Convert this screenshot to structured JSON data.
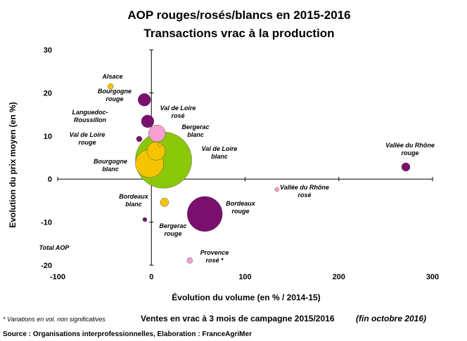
{
  "chart_data": {
    "type": "bubble",
    "title": [
      "AOP rouges/rosés/blancs en 2015-2016",
      "Transactions vrac à la production"
    ],
    "x_label": "Évolution du volume (en % / 2014-15)",
    "y_label": "Evolution du prix moyen (en %)",
    "xlim": [
      -100,
      300
    ],
    "xticks": [
      -100,
      0,
      100,
      200,
      300
    ],
    "ylim": [
      -20,
      30
    ],
    "yticks": [
      -20,
      -10,
      0,
      10,
      20,
      30
    ],
    "series": [
      {
        "name": [
          "Total AOP"
        ],
        "color": "#8cc80a",
        "x": [
          13
        ],
        "values": [
          4.4
        ],
        "sizes": [
          40
        ]
      },
      {
        "name": [
          "Alsace"
        ],
        "color": "#f5c400",
        "x": [
          -43.5
        ],
        "values": [
          21.5
        ],
        "sizes": [
          4
        ]
      },
      {
        "name": [
          "Bourgogne",
          "rouge"
        ],
        "color": "#7b0f6e",
        "x": [
          -7.5
        ],
        "values": [
          18.4
        ],
        "sizes": [
          9
        ]
      },
      {
        "name": [
          "Languedoc-",
          "Roussillon"
        ],
        "color": "#7b0f6e",
        "x": [
          -4
        ],
        "values": [
          13.4
        ],
        "sizes": [
          9
        ]
      },
      {
        "name": [
          "Val de Loire",
          "rouge"
        ],
        "color": "#7b0f6e",
        "x": [
          -13
        ],
        "values": [
          9.3
        ],
        "sizes": [
          4
        ]
      },
      {
        "name": [
          "Bourgogne",
          "blanc"
        ],
        "color": "#f5c400",
        "x": [
          -2
        ],
        "values": [
          3.6
        ],
        "sizes": [
          20
        ]
      },
      {
        "name": [
          "Val de Loire",
          "rosé"
        ],
        "color": "#f5a0d0",
        "x": [
          6
        ],
        "values": [
          10.6
        ],
        "sizes": [
          12
        ]
      },
      {
        "name": [
          "Val de Loire",
          "blanc"
        ],
        "color": "#f5c400",
        "x": [
          5
        ],
        "values": [
          6.5
        ],
        "sizes": [
          13
        ]
      },
      {
        "name": [
          "Bergerac",
          "blanc"
        ],
        "color": "#f5c400",
        "x": [
          9
        ],
        "values": [
          8
        ],
        "sizes": [
          3
        ]
      },
      {
        "name": [
          "Vallée du Rhône",
          "rouge"
        ],
        "color": "#7b0f6e",
        "x": [
          271.5
        ],
        "values": [
          2.8
        ],
        "sizes": [
          6
        ]
      },
      {
        "name": [
          "Vallée du Rhône",
          "rosé"
        ],
        "color": "#f5a0d0",
        "x": [
          134
        ],
        "values": [
          -2.4
        ],
        "sizes": [
          3
        ]
      },
      {
        "name": [
          "Bordeaux",
          "blanc"
        ],
        "color": "#f5c400",
        "x": [
          14
        ],
        "values": [
          -5.4
        ],
        "sizes": [
          6
        ]
      },
      {
        "name": [
          "Bordeaux",
          "rouge"
        ],
        "color": "#7b0f6e",
        "x": [
          57
        ],
        "values": [
          -8.1
        ],
        "sizes": [
          25
        ]
      },
      {
        "name": [
          "Bergerac",
          "rouge"
        ],
        "color": "#7b0f6e",
        "x": [
          -7
        ],
        "values": [
          -9.4
        ],
        "sizes": [
          3
        ]
      },
      {
        "name": [
          "Provence",
          "rosé *"
        ],
        "color": "#f5a0d0",
        "x": [
          41
        ],
        "values": [
          -18.9
        ],
        "sizes": [
          4
        ]
      }
    ],
    "footnote": "* Variations en vol. non significatives",
    "caption": "Ventes en vrac à 3 mois de campagne 2015/2016",
    "caption_note": "(fin octobre 2016)",
    "source": "Source : Organisations interprofessionnelles, Elaboration : FranceAgriMer"
  }
}
